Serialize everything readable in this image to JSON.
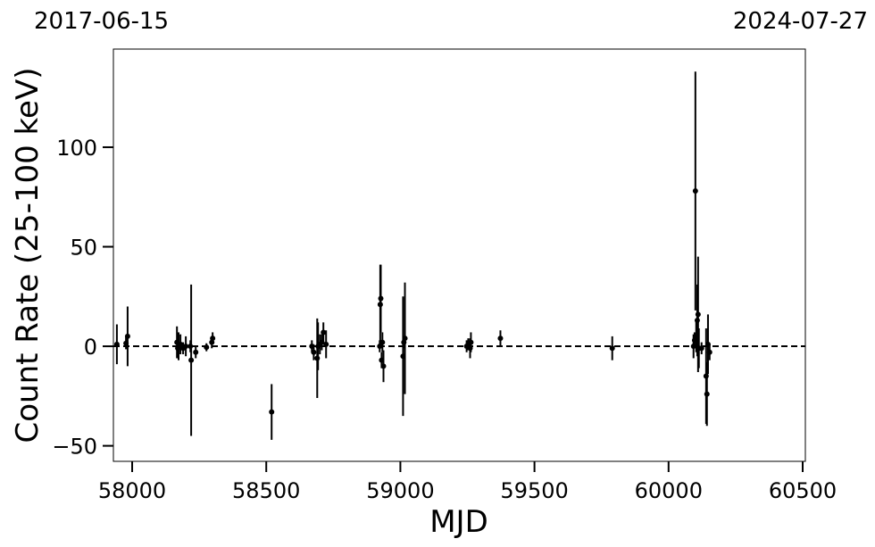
{
  "chart_data": {
    "type": "errorbar",
    "annotations": [
      "2017-06-15",
      "2024-07-27"
    ],
    "xlabel": "MJD",
    "ylabel": "Count Rate (25-100 keV)",
    "xlim": [
      57930,
      60510
    ],
    "ylim": [
      -57.8,
      149.3
    ],
    "xticks": [
      58000,
      58500,
      59000,
      59500,
      60000,
      60500
    ],
    "yticks": [
      {
        "value": -50,
        "label": "−50"
      },
      0,
      50,
      100
    ],
    "reference_line": 0,
    "color": "#000000",
    "x": [
      57943,
      57977,
      57983,
      58167,
      58170,
      58173,
      58180,
      58190,
      58200,
      58217,
      58220,
      58237,
      58277,
      58297,
      58300,
      58520,
      58670,
      58677,
      58690,
      58693,
      58700,
      58707,
      58713,
      58723,
      58923,
      58927,
      58925,
      58930,
      58933,
      58937,
      59013,
      59010,
      59017,
      59247,
      59253,
      59260,
      59263,
      59373,
      59790,
      60093,
      60097,
      60100,
      60103,
      60107,
      60110,
      60113,
      60123,
      60140,
      60143,
      60147,
      60153
    ],
    "values": [
      1,
      1.5,
      5,
      2,
      -1,
      0,
      1,
      -1,
      0,
      0,
      -7,
      -3,
      -0.5,
      2,
      4,
      -33,
      0,
      -3,
      -6,
      0,
      1,
      2,
      7,
      1,
      0,
      24,
      21,
      -7,
      2,
      -10,
      2,
      -5,
      4,
      0,
      1,
      -1,
      2,
      4,
      -1,
      0,
      3,
      78,
      5,
      13,
      16,
      -1,
      -1,
      -15,
      -24,
      1,
      -3
    ],
    "errors": [
      10,
      3,
      15,
      8,
      5,
      7,
      5,
      3,
      5,
      3,
      38,
      3,
      2,
      3,
      3,
      14,
      3,
      4,
      20,
      12,
      5,
      4,
      5,
      7,
      3,
      17,
      20,
      4,
      5,
      8,
      3,
      30,
      28,
      3,
      3,
      5,
      5,
      4,
      6,
      6,
      4,
      60,
      8,
      18,
      29,
      10,
      3,
      24,
      16,
      15,
      4
    ]
  }
}
